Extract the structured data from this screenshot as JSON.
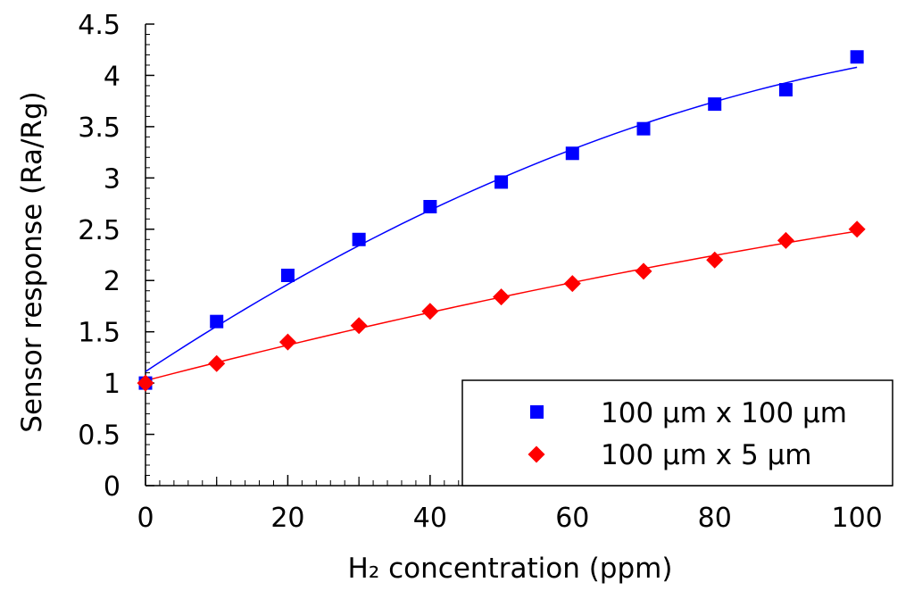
{
  "chart_data": {
    "type": "scatter",
    "title": "",
    "xlabel": "H₂ concentration (ppm)",
    "ylabel": "Sensor response (Ra/Rg)",
    "xlim": [
      0,
      105
    ],
    "ylim": [
      0,
      4.5
    ],
    "x_ticks": [
      0,
      20,
      40,
      60,
      80,
      100
    ],
    "x_tick_labels": [
      "0",
      "20",
      "40",
      "60",
      "80",
      "100"
    ],
    "y_ticks": [
      0,
      0.5,
      1,
      1.5,
      2,
      2.5,
      3,
      3.5,
      4,
      4.5
    ],
    "y_tick_labels": [
      "0",
      "0.5",
      "1",
      "1.5",
      "2",
      "2.5",
      "3",
      "3.5",
      "4",
      "4.5"
    ],
    "grid": false,
    "legend_position": "bottom-right",
    "series": [
      {
        "name": "100 µm x 100 µm",
        "marker": "square",
        "color": "#0000ff",
        "x": [
          0,
          10,
          20,
          30,
          40,
          50,
          60,
          70,
          80,
          90,
          100
        ],
        "values": [
          1.0,
          1.6,
          2.05,
          2.4,
          2.72,
          2.96,
          3.24,
          3.48,
          3.72,
          3.86,
          4.18
        ],
        "fit_line": true
      },
      {
        "name": "100 µm x 5 µm",
        "marker": "diamond",
        "color": "#ff0000",
        "x": [
          0,
          10,
          20,
          30,
          40,
          50,
          60,
          70,
          80,
          90,
          100
        ],
        "values": [
          1.0,
          1.19,
          1.4,
          1.56,
          1.7,
          1.84,
          1.97,
          2.09,
          2.2,
          2.39,
          2.5
        ],
        "fit_line": true
      }
    ]
  }
}
